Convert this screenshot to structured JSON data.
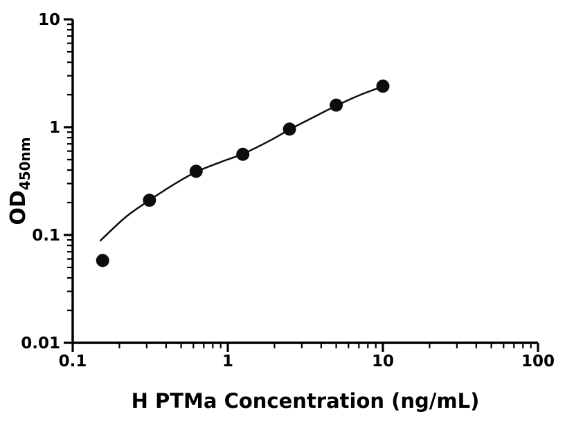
{
  "chart_data": {
    "type": "scatter",
    "title": "",
    "xlabel": "H PTMa Concentration (ng/mL)",
    "ylabel_main": "OD",
    "ylabel_sub": "450nm",
    "x_scale": "log",
    "y_scale": "log",
    "xlim": [
      0.1,
      100
    ],
    "ylim": [
      0.01,
      10
    ],
    "x_ticks": [
      0.1,
      1,
      10,
      100
    ],
    "x_tick_labels": [
      "0.1",
      "1",
      "10",
      "100"
    ],
    "y_ticks": [
      0.01,
      0.1,
      1,
      10
    ],
    "y_tick_labels": [
      "0.01",
      "0.1",
      "1",
      "10"
    ],
    "grid": false,
    "legend": "none",
    "points": {
      "x": [
        0.156,
        0.3125,
        0.625,
        1.25,
        2.5,
        5,
        10
      ],
      "y": [
        0.058,
        0.21,
        0.39,
        0.56,
        0.96,
        1.6,
        2.4
      ]
    },
    "fit_curve": {
      "x": [
        0.15,
        0.22,
        0.3125,
        0.45,
        0.625,
        0.9,
        1.25,
        1.8,
        2.5,
        3.5,
        5,
        7,
        10
      ],
      "y": [
        0.088,
        0.147,
        0.21,
        0.295,
        0.385,
        0.475,
        0.565,
        0.73,
        0.95,
        1.22,
        1.58,
        1.97,
        2.39
      ]
    },
    "marker_color": "#0d0d0d",
    "line_color": "#0d0d0d",
    "axis_color": "#000000",
    "background_color": "#ffffff"
  }
}
